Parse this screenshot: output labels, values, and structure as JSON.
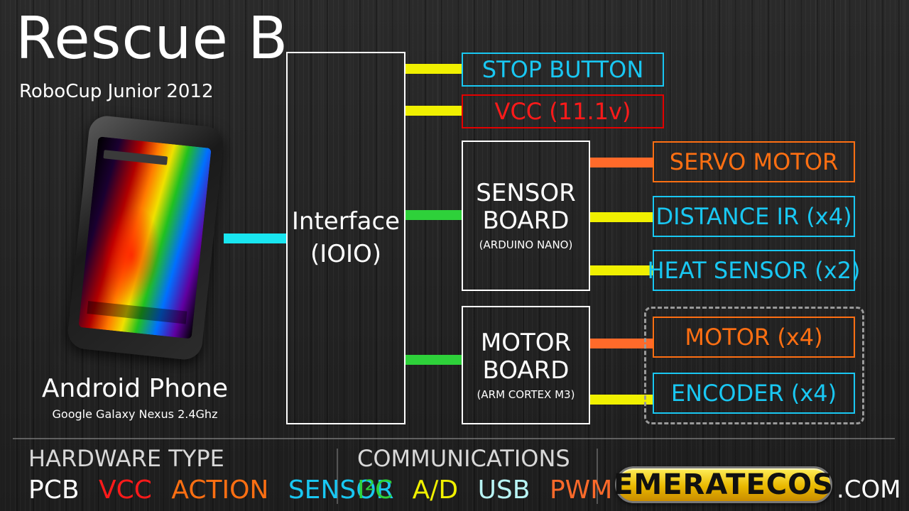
{
  "header": {
    "title": "Rescue B",
    "subtitle": "RoboCup Junior 2012"
  },
  "phone": {
    "label": "Android Phone",
    "model": "Google Galaxy Nexus 2.4Ghz"
  },
  "interface": {
    "line1": "Interface",
    "line2": "(IOIO)"
  },
  "sensor_board": {
    "line1": "SENSOR",
    "line2": "BOARD",
    "sub": "(ARDUINO NANO)"
  },
  "motor_board": {
    "line1": "MOTOR",
    "line2": "BOARD",
    "sub": "(ARM CORTEX M3)"
  },
  "components": {
    "stop_button": "STOP BUTTON",
    "vcc": "VCC (11.1v)",
    "servo_motor": "SERVO MOTOR",
    "distance_ir": "DISTANCE IR (x4)",
    "heat_sensor": "HEAT SENSOR (x2)",
    "motor": "MOTOR (x4)",
    "encoder": "ENCODER (x4)"
  },
  "legend": {
    "hardware_title": "HARDWARE TYPE",
    "hardware": {
      "pcb": "PCB",
      "vcc": "VCC",
      "action": "ACTION",
      "sensor": "SENSOR"
    },
    "comm_title": "COMMUNICATIONS",
    "comm": {
      "i2c": "I²C",
      "ad": "A/D",
      "usb": "USB",
      "pwm": "PWM"
    }
  },
  "logo": {
    "text": "EMERATECOS",
    "suffix": ".COM"
  },
  "colors": {
    "pcb": "#ffffff",
    "vcc": "#ff1a1a",
    "action": "#ff6f12",
    "sensor": "#19c7f2",
    "i2c": "#2ed13a",
    "ad": "#f0f000",
    "usb": "#b8f4f4",
    "pwm": "#ff6a2a"
  }
}
